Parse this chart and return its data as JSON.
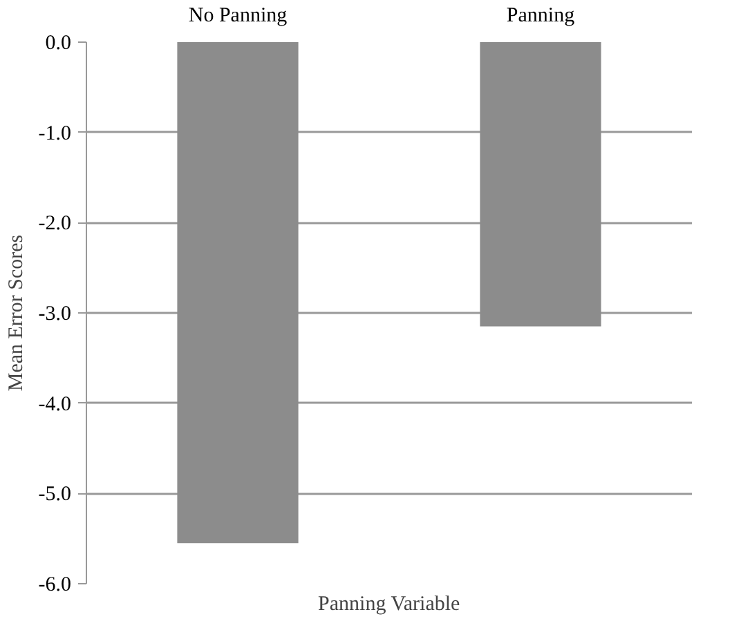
{
  "chart_data": {
    "type": "bar",
    "xlabel": "Panning Variable",
    "ylabel": "Mean Error Scores",
    "categories": [
      "No Panning",
      "Panning"
    ],
    "values": [
      -5.55,
      -3.15
    ],
    "color": "#8c8c8c",
    "ylim": [
      -6,
      0
    ],
    "yticks": [
      {
        "value": 0,
        "label": "0.0"
      },
      {
        "value": -1,
        "label": "-1.0"
      },
      {
        "value": -2,
        "label": "-2.0"
      },
      {
        "value": -3,
        "label": "-3.0"
      },
      {
        "value": -4,
        "label": "-4.0"
      },
      {
        "value": -5,
        "label": "-5.0"
      },
      {
        "value": -6,
        "label": "-6.0"
      }
    ],
    "grid": "y"
  }
}
